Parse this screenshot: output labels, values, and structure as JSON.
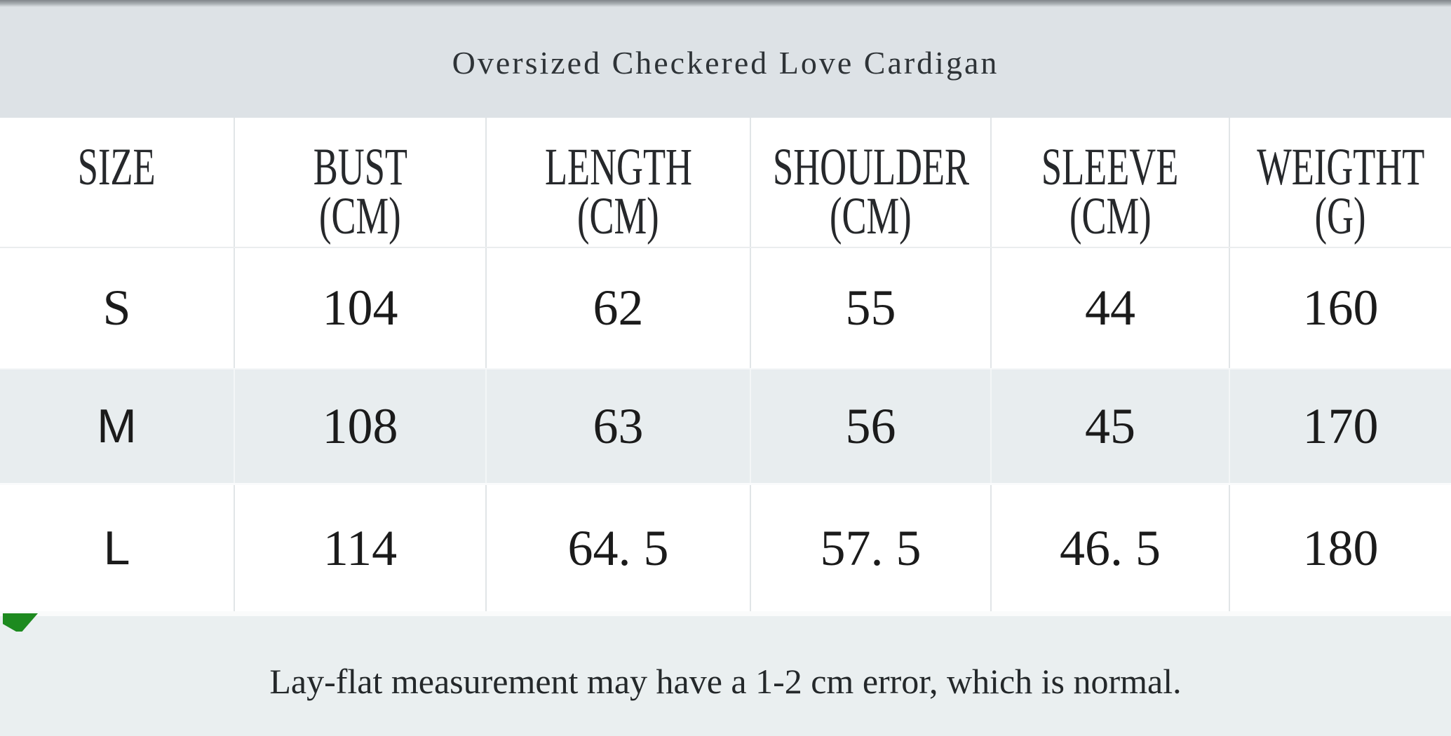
{
  "title": "Oversized Checkered Love Cardigan",
  "columns": [
    {
      "label": "SIZE",
      "unit": ""
    },
    {
      "label": "BUST",
      "unit": "(CM)"
    },
    {
      "label": "LENGTH",
      "unit": "(CM)"
    },
    {
      "label": "SHOULDER",
      "unit": "(CM)"
    },
    {
      "label": "SLEEVE",
      "unit": "(CM)"
    },
    {
      "label": "WEIGTHT",
      "unit": "(G)"
    }
  ],
  "rows": [
    {
      "size": "S",
      "bust": "104",
      "length": "62",
      "shoulder": "55",
      "sleeve": "44",
      "weight": "160"
    },
    {
      "size": "M",
      "bust": "108",
      "length": "63",
      "shoulder": "56",
      "sleeve": "45",
      "weight": "170"
    },
    {
      "size": "L",
      "bust": "114",
      "length": "64. 5",
      "shoulder": "57. 5",
      "sleeve": "46. 5",
      "weight": "180"
    }
  ],
  "note": "Lay-flat measurement may have a 1-2 cm error, which is normal.",
  "colors": {
    "title_band": "#dde2e6",
    "alt_row": "#e8edef",
    "note_band": "#eaeff0",
    "cell_border": "#e1e5e7",
    "top_edge": "#80858a",
    "marker_green": "#1d8a1f",
    "text": "#1c1c1c"
  }
}
